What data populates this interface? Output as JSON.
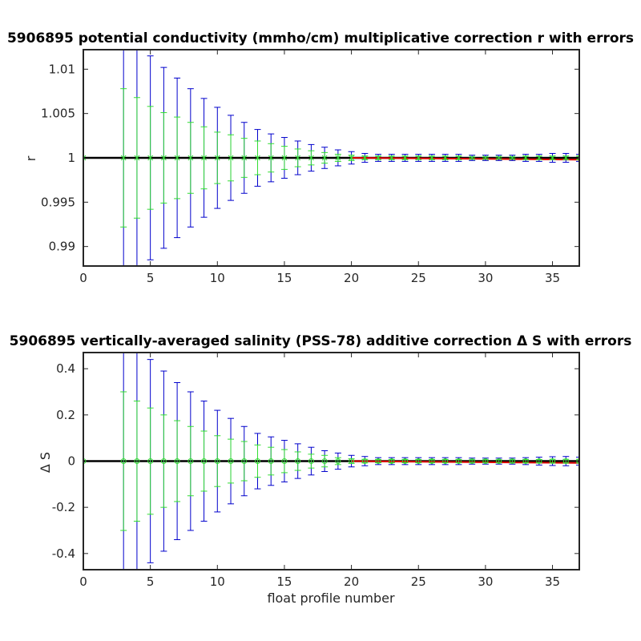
{
  "chart_data": [
    {
      "type": "errorbar",
      "title": "5906895 potential conductivity (mmho/cm) multiplicative correction r with errors",
      "xlabel": "",
      "ylabel": "r",
      "xlim": [
        0,
        37
      ],
      "ylim": [
        0.9878,
        1.0122
      ],
      "x_ticks": [
        0,
        5,
        10,
        15,
        20,
        25,
        30,
        35
      ],
      "y_ticks": [
        0.99,
        0.995,
        1,
        1.005,
        1.01
      ],
      "y_tick_labels": [
        "0.99",
        "0.995",
        "1",
        "1.005",
        "1.01"
      ],
      "reference_line": 1,
      "colors": {
        "blue": "#0000cc",
        "green": "#33dd33",
        "black": "#000000",
        "red": "#dd0000"
      },
      "x": [
        0,
        3,
        4,
        5,
        6,
        7,
        8,
        9,
        10,
        11,
        12,
        13,
        14,
        15,
        16,
        17,
        18,
        19,
        20,
        21,
        22,
        23,
        24,
        25,
        26,
        27,
        28,
        29,
        30,
        31,
        32,
        33,
        34,
        35,
        36,
        37
      ],
      "center": [
        1,
        1,
        1,
        1,
        1,
        1,
        1,
        1,
        1,
        1,
        1,
        1,
        1,
        1,
        1,
        1,
        1,
        1,
        1,
        1,
        1,
        1,
        1,
        1,
        1,
        1,
        1,
        1,
        1,
        1,
        1,
        1,
        1,
        1,
        1,
        1
      ],
      "blue_err": [
        0,
        0.0122,
        0.0122,
        0.0115,
        0.0102,
        0.009,
        0.0078,
        0.0067,
        0.0057,
        0.0048,
        0.004,
        0.0032,
        0.0027,
        0.0023,
        0.0019,
        0.0015,
        0.0012,
        0.0009,
        0.0007,
        0.0005,
        0.0004,
        0.0004,
        0.0004,
        0.0004,
        0.0004,
        0.0004,
        0.0004,
        0.0003,
        0.0003,
        0.0003,
        0.0003,
        0.0004,
        0.0004,
        0.0005,
        0.0005,
        0.0004
      ],
      "green_err": [
        0.0122,
        0.0078,
        0.0068,
        0.0058,
        0.0051,
        0.0046,
        0.004,
        0.0035,
        0.0029,
        0.0026,
        0.0022,
        0.0019,
        0.0016,
        0.0013,
        0.001,
        0.0008,
        0.0006,
        0.0004,
        0.0003,
        0.0002,
        0.0002,
        0.0002,
        0.0002,
        0.0002,
        0.0002,
        0.0002,
        0.0002,
        0.0001,
        0.0001,
        0.0001,
        0.0001,
        0.0002,
        0.0002,
        0.0002,
        0.0002,
        0.0002
      ],
      "red_segment": {
        "x": [
          20,
          37
        ],
        "y": [
          1,
          0.9998
        ]
      }
    },
    {
      "type": "errorbar",
      "title": "5906895 vertically-averaged salinity (PSS-78) additive correction Δ S with errors",
      "xlabel": "float profile number",
      "ylabel": "Δ S",
      "xlim": [
        0,
        37
      ],
      "ylim": [
        -0.47,
        0.47
      ],
      "x_ticks": [
        0,
        5,
        10,
        15,
        20,
        25,
        30,
        35
      ],
      "y_ticks": [
        -0.4,
        -0.2,
        0,
        0.2,
        0.4
      ],
      "y_tick_labels": [
        "-0.4",
        "-0.2",
        "0",
        "0.2",
        "0.4"
      ],
      "reference_line": 0,
      "colors": {
        "blue": "#0000cc",
        "green": "#33dd33",
        "black": "#000000",
        "red": "#dd0000"
      },
      "x": [
        0,
        3,
        4,
        5,
        6,
        7,
        8,
        9,
        10,
        11,
        12,
        13,
        14,
        15,
        16,
        17,
        18,
        19,
        20,
        21,
        22,
        23,
        24,
        25,
        26,
        27,
        28,
        29,
        30,
        31,
        32,
        33,
        34,
        35,
        36,
        37
      ],
      "center": [
        0,
        0,
        0,
        0,
        0,
        0,
        0,
        0,
        0,
        0,
        0,
        0,
        0,
        0,
        0,
        0,
        0,
        0,
        0,
        0,
        0,
        0,
        0,
        0,
        0,
        0,
        0,
        0,
        0,
        0,
        0,
        0,
        0,
        0,
        0,
        0
      ],
      "blue_err": [
        0,
        0.47,
        0.47,
        0.44,
        0.39,
        0.34,
        0.3,
        0.26,
        0.22,
        0.185,
        0.15,
        0.12,
        0.105,
        0.09,
        0.075,
        0.06,
        0.045,
        0.035,
        0.025,
        0.02,
        0.015,
        0.015,
        0.015,
        0.015,
        0.015,
        0.015,
        0.015,
        0.013,
        0.013,
        0.013,
        0.013,
        0.015,
        0.017,
        0.019,
        0.02,
        0.017
      ],
      "green_err": [
        0.47,
        0.3,
        0.26,
        0.23,
        0.2,
        0.175,
        0.15,
        0.13,
        0.11,
        0.095,
        0.085,
        0.07,
        0.06,
        0.05,
        0.04,
        0.03,
        0.025,
        0.015,
        0.01,
        0.008,
        0.007,
        0.007,
        0.007,
        0.007,
        0.007,
        0.007,
        0.007,
        0.006,
        0.006,
        0.006,
        0.006,
        0.007,
        0.007,
        0.008,
        0.008,
        0.008
      ],
      "red_segment": {
        "x": [
          20,
          37
        ],
        "y": [
          0,
          -0.008
        ]
      }
    }
  ]
}
